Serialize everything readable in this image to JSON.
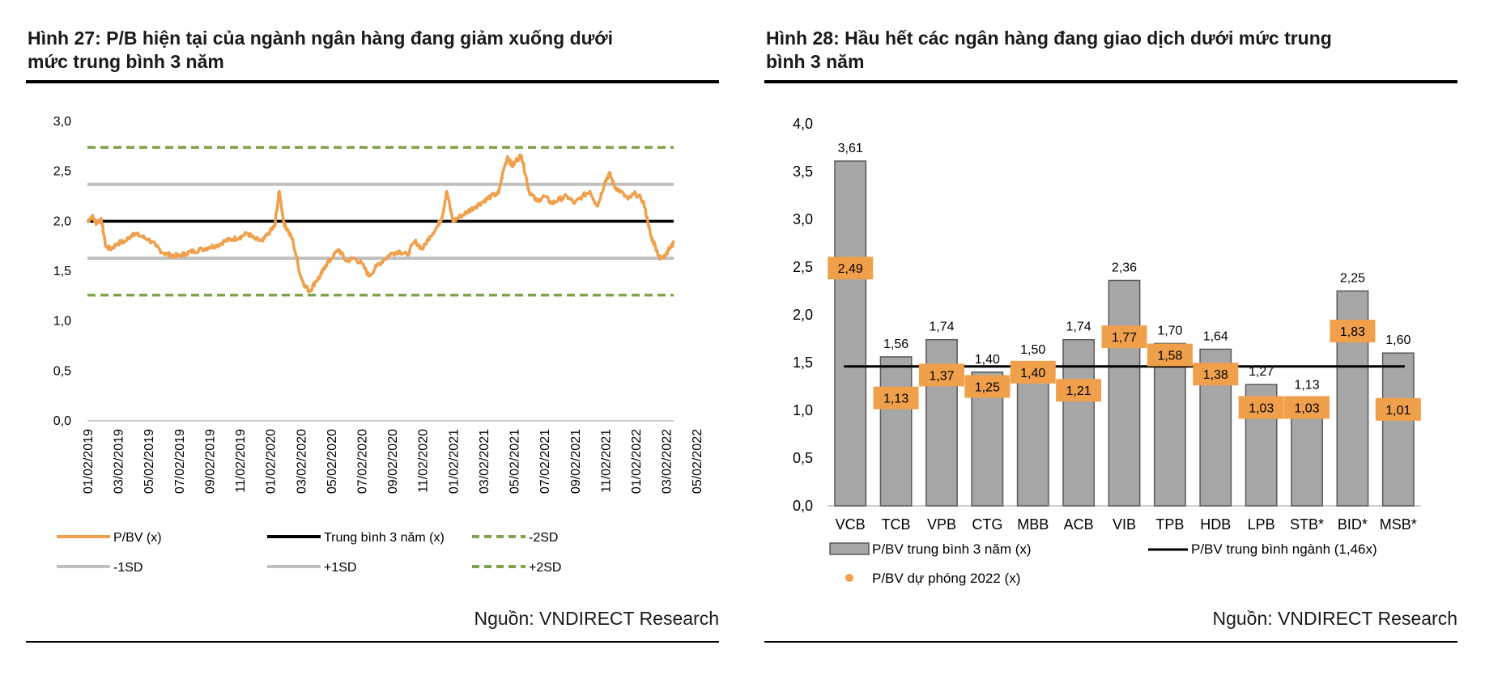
{
  "figures": [
    {
      "title_line1": "Hình 27: P/B hiện tại của ngành ngân hàng đang giảm xuống dưới",
      "title_line2": "mức trung bình 3 năm",
      "source": "Nguồn: VNDIRECT Research"
    },
    {
      "title_line1": "Hình 28: Hầu hết các ngân hàng đang giao dịch dưới mức trung",
      "title_line2": "bình 3 năm",
      "source": "Nguồn: VNDIRECT Research"
    }
  ],
  "colors": {
    "orange": "#F0A04B",
    "gray_line": "#C0C0C0",
    "green_dash": "#7FA34A",
    "bar_fill": "#A6A6A6",
    "bar_stroke": "#595959",
    "label_fill": "#F0A04B"
  },
  "chart_data": [
    {
      "type": "line",
      "title": "Hình 27: P/B hiện tại của ngành ngân hàng đang giảm xuống dưới mức trung bình 3 năm",
      "ylim": [
        0,
        3.0
      ],
      "yticks": [
        "0,0",
        "0,5",
        "1,0",
        "1,5",
        "2,0",
        "2,5",
        "3,0"
      ],
      "xticks": [
        "01/02/2019",
        "03/02/2019",
        "05/02/2019",
        "07/02/2019",
        "09/02/2019",
        "11/02/2019",
        "01/02/2020",
        "03/02/2020",
        "05/02/2020",
        "07/02/2020",
        "09/02/2020",
        "11/02/2020",
        "01/02/2021",
        "03/02/2021",
        "05/02/2021",
        "07/02/2021",
        "09/02/2021",
        "11/02/2021",
        "01/02/2022",
        "03/02/2022",
        "05/02/2022"
      ],
      "x_months": [
        0,
        38.5
      ],
      "series": [
        {
          "name": "P/BV (x)",
          "x": [
            0,
            0.3,
            0.6,
            0.9,
            1.2,
            1.5,
            2.0,
            2.5,
            3.0,
            3.5,
            4.0,
            4.5,
            5.0,
            5.5,
            6.0,
            6.5,
            7.0,
            7.5,
            8.0,
            8.5,
            9.0,
            9.5,
            10.0,
            10.5,
            11.0,
            11.5,
            12.0,
            12.3,
            12.6,
            12.9,
            13.2,
            13.5,
            14.0,
            14.3,
            14.6,
            15.0,
            15.3,
            15.6,
            16.0,
            16.5,
            17.0,
            17.5,
            18.0,
            18.5,
            19.0,
            19.5,
            20.0,
            20.5,
            21.0,
            21.5,
            22.0,
            22.5,
            23.0,
            23.3,
            23.6,
            24.0,
            24.5,
            25.0,
            25.5,
            26.0,
            26.5,
            27.0,
            27.3,
            27.6,
            27.9,
            28.2,
            28.5,
            28.8,
            29.0,
            29.5,
            30.0,
            30.5,
            31.0,
            31.5,
            32.0,
            32.5,
            33.0,
            33.5,
            34.0,
            34.3,
            34.6,
            35.0,
            35.5,
            36.0,
            36.5,
            36.8,
            37.0,
            37.3,
            37.6,
            37.9,
            38.2,
            38.5
          ],
          "values": [
            2.0,
            2.05,
            1.98,
            2.03,
            1.75,
            1.72,
            1.78,
            1.8,
            1.88,
            1.85,
            1.82,
            1.75,
            1.68,
            1.66,
            1.65,
            1.68,
            1.7,
            1.72,
            1.74,
            1.76,
            1.8,
            1.82,
            1.84,
            1.88,
            1.82,
            1.8,
            1.9,
            1.95,
            2.3,
            1.98,
            1.9,
            1.8,
            1.45,
            1.35,
            1.3,
            1.4,
            1.45,
            1.55,
            1.62,
            1.72,
            1.6,
            1.63,
            1.58,
            1.45,
            1.55,
            1.62,
            1.68,
            1.7,
            1.66,
            1.8,
            1.72,
            1.85,
            1.95,
            2.05,
            2.3,
            2.0,
            2.05,
            2.1,
            2.15,
            2.2,
            2.25,
            2.28,
            2.5,
            2.65,
            2.55,
            2.62,
            2.66,
            2.45,
            2.3,
            2.2,
            2.25,
            2.18,
            2.22,
            2.25,
            2.18,
            2.25,
            2.3,
            2.15,
            2.4,
            2.48,
            2.35,
            2.3,
            2.22,
            2.28,
            2.2,
            2.0,
            1.85,
            1.75,
            1.62,
            1.66,
            1.72,
            1.78
          ]
        },
        {
          "name": "Trung bình 3 năm (x)",
          "value": 2.0
        },
        {
          "name": "-2SD",
          "value": 1.26
        },
        {
          "name": "-1SD",
          "value": 1.63
        },
        {
          "name": "+1SD",
          "value": 2.37
        },
        {
          "name": "+2SD",
          "value": 2.74
        }
      ],
      "legend": [
        "P/BV (x)",
        "Trung bình 3 năm (x)",
        "-2SD",
        "-1SD",
        "+1SD",
        "+2SD"
      ]
    },
    {
      "type": "bar",
      "title": "Hình 28: Hầu hết các ngân hàng đang giao dịch dưới mức trung bình 3 năm",
      "ylim": [
        0,
        4.0
      ],
      "yticks": [
        "0,0",
        "0,5",
        "1,0",
        "1,5",
        "2,0",
        "2,5",
        "3,0",
        "3,5",
        "4,0"
      ],
      "categories": [
        "VCB",
        "TCB",
        "VPB",
        "CTG",
        "MBB",
        "ACB",
        "VIB",
        "TPB",
        "HDB",
        "LPB",
        "STB*",
        "BID*",
        "MSB*"
      ],
      "series": [
        {
          "name": "P/BV trung bình 3 năm (x)",
          "values": [
            3.61,
            1.56,
            1.74,
            1.4,
            1.5,
            1.74,
            2.36,
            1.7,
            1.64,
            1.27,
            1.13,
            2.25,
            1.6
          ],
          "labels": [
            "3,61",
            "1,56",
            "1,74",
            "1,40",
            "1,50",
            "1,74",
            "2,36",
            "1,70",
            "1,64",
            "1,27",
            "1,13",
            "2,25",
            "1,60"
          ]
        },
        {
          "name": "P/BV dự phóng 2022 (x)",
          "values": [
            2.49,
            1.13,
            1.37,
            1.25,
            1.4,
            1.21,
            1.77,
            1.58,
            1.38,
            1.03,
            1.03,
            1.83,
            1.01
          ],
          "labels": [
            "2,49",
            "1,13",
            "1,37",
            "1,25",
            "1,40",
            "1,21",
            "1,77",
            "1,58",
            "1,38",
            "1,03",
            "1,03",
            "1,83",
            "1,01"
          ]
        },
        {
          "name": "P/BV trung bình ngành (1,46x)",
          "value": 1.46
        }
      ],
      "legend": [
        "P/BV trung bình 3 năm (x)",
        "P/BV trung bình ngành (1,46x)",
        "P/BV dự phóng 2022 (x)"
      ]
    }
  ]
}
